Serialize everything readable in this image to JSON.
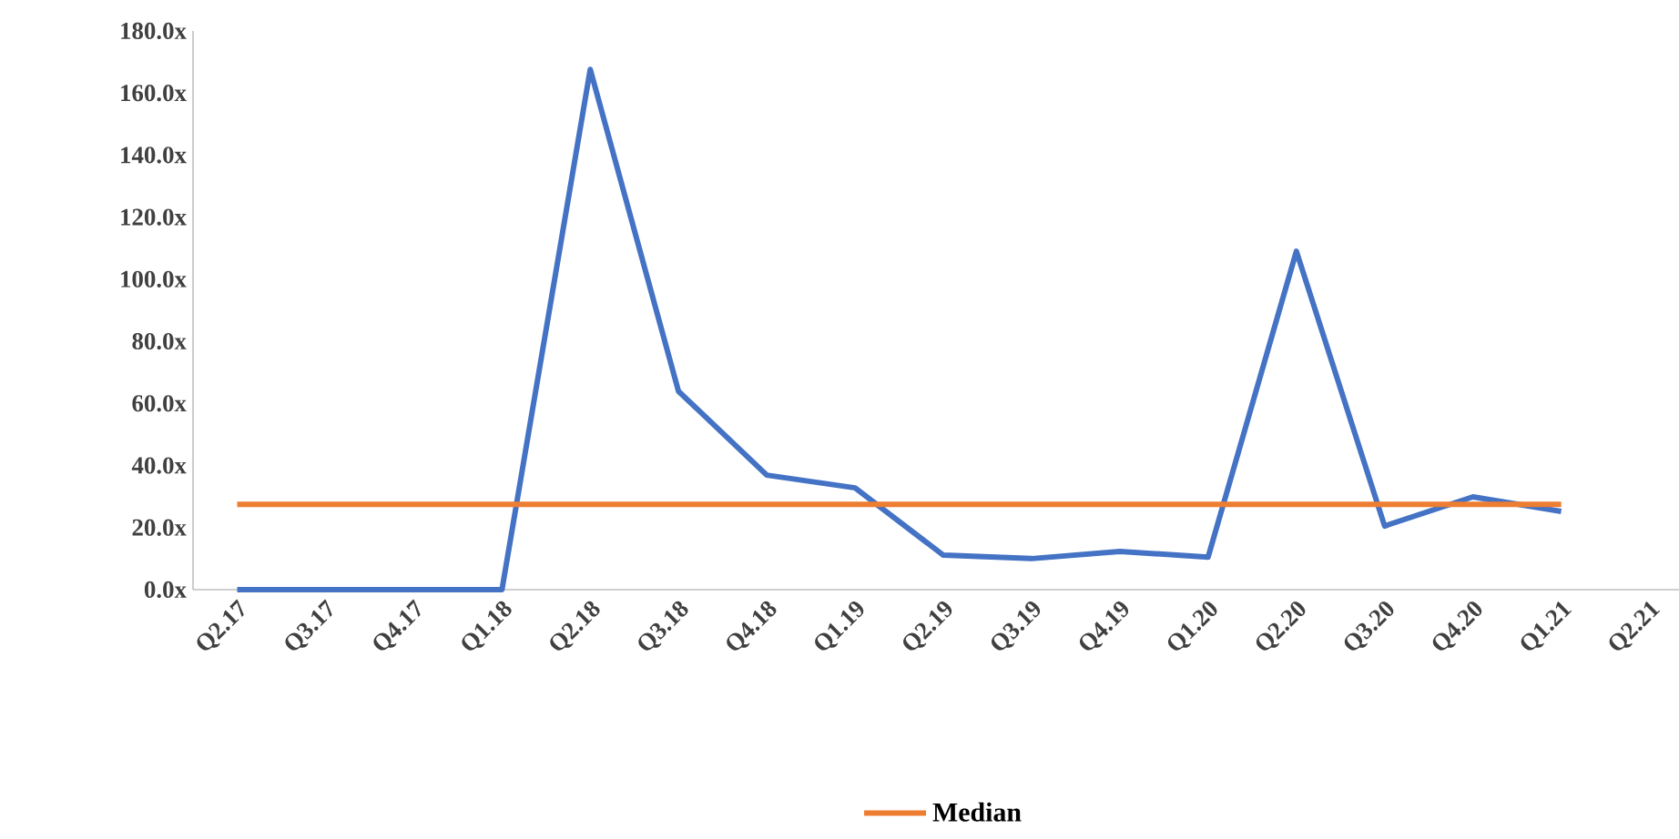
{
  "chart_data": {
    "type": "line",
    "categories": [
      "Q2.17",
      "Q3.17",
      "Q4.17",
      "Q1.18",
      "Q2.18",
      "Q3.18",
      "Q4.18",
      "Q1.19",
      "Q2.19",
      "Q3.19",
      "Q4.19",
      "Q1.20",
      "Q2.20",
      "Q3.20",
      "Q4.20",
      "Q1.21",
      "Q2.21"
    ],
    "series": [
      {
        "color": "#4472c4",
        "values": [
          0,
          0,
          0,
          0,
          167.6,
          63.9,
          36.9,
          32.8,
          11.1,
          10.0,
          12.3,
          10.5,
          109,
          20.5,
          29.9,
          25.2,
          null
        ]
      },
      {
        "name": "Median",
        "color": "#ed7d31",
        "values": [
          27.5,
          27.5,
          27.5,
          27.5,
          27.5,
          27.5,
          27.5,
          27.5,
          27.5,
          27.5,
          27.5,
          27.5,
          27.5,
          27.5,
          27.5,
          27.5,
          null
        ]
      }
    ],
    "ylim": [
      0,
      180
    ],
    "yticks": [
      {
        "value": 0,
        "label": "0.0x"
      },
      {
        "value": 20,
        "label": "20.0x"
      },
      {
        "value": 40,
        "label": "40.0x"
      },
      {
        "value": 60,
        "label": "60.0x"
      },
      {
        "value": 80,
        "label": "80.0x"
      },
      {
        "value": 100,
        "label": "100.0x"
      },
      {
        "value": 120,
        "label": "120.0x"
      },
      {
        "value": 140,
        "label": "140.0x"
      },
      {
        "value": 160,
        "label": "160.0x"
      },
      {
        "value": 180,
        "label": "180.0x"
      }
    ],
    "legend": "bottom"
  }
}
